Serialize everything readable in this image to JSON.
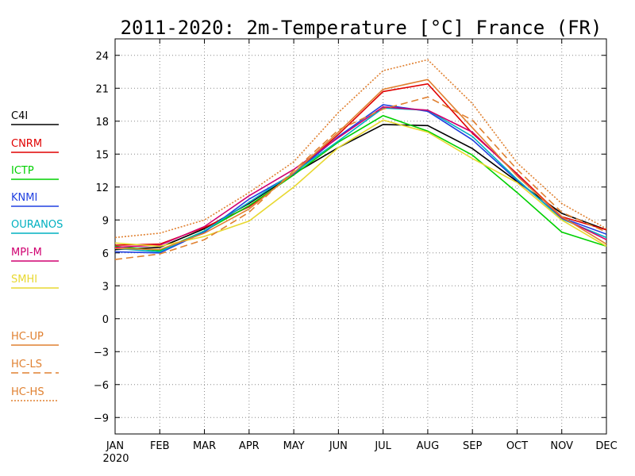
{
  "chart_data": {
    "type": "line",
    "title": "2011-2020: 2m-Temperature [°C] France (FR)",
    "xlabel": "",
    "ylabel": "",
    "categories": [
      "JAN",
      "FEB",
      "MAR",
      "APR",
      "MAY",
      "JUN",
      "JUL",
      "AUG",
      "SEP",
      "OCT",
      "NOV",
      "DEC"
    ],
    "year_label": "2020",
    "ylim": [
      -10.5,
      25.5
    ],
    "yticks": [
      -9,
      -6,
      -3,
      0,
      3,
      6,
      9,
      12,
      15,
      18,
      21,
      24
    ],
    "grid": true,
    "legend_position": "left",
    "series": [
      {
        "name": "C4I",
        "color": "#000000",
        "dash": "solid",
        "values": [
          6.3,
          6.5,
          8.2,
          10.5,
          13.2,
          15.6,
          17.7,
          17.6,
          15.5,
          12.5,
          9.6,
          8.1
        ]
      },
      {
        "name": "CNRM",
        "color": "#e00000",
        "dash": "solid",
        "values": [
          6.7,
          6.8,
          8.3,
          10.2,
          13.2,
          16.8,
          20.7,
          21.4,
          16.9,
          13.2,
          9.3,
          8.1
        ]
      },
      {
        "name": "ICTP",
        "color": "#00d000",
        "dash": "solid",
        "values": [
          6.6,
          6.2,
          8.0,
          10.3,
          13.1,
          16.1,
          18.5,
          17.1,
          14.9,
          11.5,
          7.9,
          6.6
        ]
      },
      {
        "name": "KNMI",
        "color": "#2040e0",
        "dash": "solid",
        "values": [
          6.1,
          6.0,
          7.9,
          10.9,
          13.2,
          16.6,
          19.5,
          18.9,
          16.3,
          12.6,
          9.2,
          7.7
        ]
      },
      {
        "name": "OURANOS",
        "color": "#00b0c0",
        "dash": "solid",
        "values": [
          6.4,
          6.1,
          8.0,
          10.6,
          13.3,
          16.2,
          19.2,
          19.0,
          16.6,
          12.7,
          9.1,
          7.4
        ]
      },
      {
        "name": "MPI-M",
        "color": "#d00070",
        "dash": "solid",
        "values": [
          6.5,
          6.7,
          8.4,
          11.2,
          13.6,
          16.5,
          19.3,
          19.0,
          17.0,
          13.1,
          9.2,
          7.2
        ]
      },
      {
        "name": "SMHI",
        "color": "#e8d830",
        "dash": "solid",
        "values": [
          6.9,
          6.6,
          7.5,
          8.9,
          12.0,
          15.6,
          18.1,
          17.0,
          14.6,
          12.4,
          9.0,
          6.6
        ]
      },
      {
        "name": "HC-UP",
        "color": "#e08030",
        "dash": "solid",
        "values": [
          6.4,
          6.3,
          7.8,
          10.0,
          13.3,
          17.0,
          20.9,
          21.8,
          17.4,
          13.0,
          9.3,
          6.8
        ]
      },
      {
        "name": "HC-LS",
        "color": "#e08030",
        "dash": "dashed",
        "values": [
          5.4,
          5.9,
          7.2,
          9.7,
          13.5,
          17.2,
          19.1,
          20.2,
          18.1,
          13.6,
          9.7,
          7.9
        ]
      },
      {
        "name": "HC-HS",
        "color": "#e08030",
        "dash": "dotted",
        "values": [
          7.4,
          7.8,
          9.0,
          11.5,
          14.3,
          18.8,
          22.6,
          23.6,
          19.6,
          14.2,
          10.5,
          8.2
        ]
      }
    ]
  }
}
